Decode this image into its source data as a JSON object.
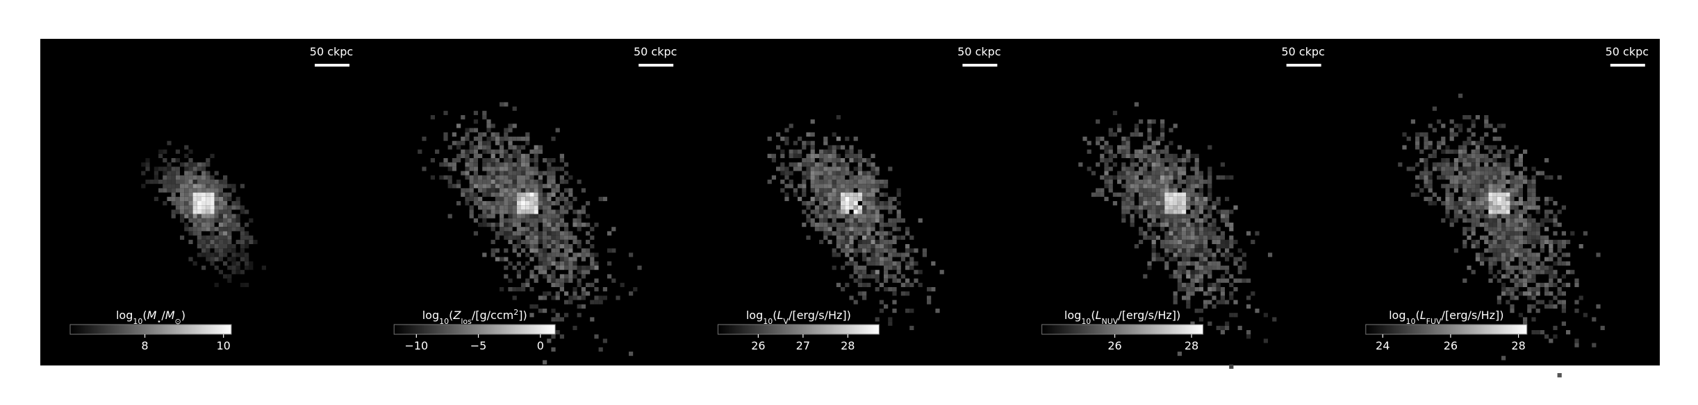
{
  "chart_data": [
    {
      "type": "image",
      "scale_bar_label": "50 ckpc",
      "colorbar_label": [
        {
          "text": "log"
        },
        {
          "text": "10",
          "sub": true
        },
        {
          "text": "("
        },
        {
          "text": "M",
          "italic": true
        },
        {
          "text": "⋆",
          "sub": true
        },
        {
          "text": "/"
        },
        {
          "text": "M",
          "italic": true
        },
        {
          "text": "⊙",
          "sub": true
        },
        {
          "text": ")"
        }
      ],
      "clim": [
        6.1,
        10.2
      ],
      "cticks": [
        8,
        10
      ]
    },
    {
      "type": "image",
      "scale_bar_label": "50 ckpc",
      "colorbar_label": [
        {
          "text": "log"
        },
        {
          "text": "10",
          "sub": true
        },
        {
          "text": "("
        },
        {
          "text": "Z",
          "italic": true
        },
        {
          "text": "los",
          "sub": true
        },
        {
          "text": "/[g/ccm"
        },
        {
          "text": "2",
          "sup": true
        },
        {
          "text": "])"
        }
      ],
      "clim": [
        -11.8,
        1.2
      ],
      "cticks": [
        {
          "value": -10,
          "label": "−10"
        },
        {
          "value": -5,
          "label": "−5"
        },
        0
      ]
    },
    {
      "type": "image",
      "scale_bar_label": "50 ckpc",
      "colorbar_label": [
        {
          "text": "log"
        },
        {
          "text": "10",
          "sub": true
        },
        {
          "text": "("
        },
        {
          "text": "L",
          "italic": true
        },
        {
          "text": "V",
          "sub": true
        },
        {
          "text": "/[erg/s/Hz])"
        }
      ],
      "clim": [
        25.1,
        28.7
      ],
      "cticks": [
        26,
        27,
        28
      ]
    },
    {
      "type": "image",
      "scale_bar_label": "50 ckpc",
      "colorbar_label": [
        {
          "text": "log"
        },
        {
          "text": "10",
          "sub": true
        },
        {
          "text": "("
        },
        {
          "text": "L",
          "italic": true
        },
        {
          "text": "NUV",
          "sub": true
        },
        {
          "text": "/[erg/s/Hz])"
        }
      ],
      "clim": [
        24.1,
        28.3
      ],
      "cticks": [
        26,
        28
      ]
    },
    {
      "type": "image",
      "scale_bar_label": "50 ckpc",
      "colorbar_label": [
        {
          "text": "log"
        },
        {
          "text": "10",
          "sub": true
        },
        {
          "text": "("
        },
        {
          "text": "L",
          "italic": true
        },
        {
          "text": "FUV",
          "sub": true
        },
        {
          "text": "/[erg/s/Hz])"
        }
      ],
      "clim": [
        23.5,
        28.25
      ],
      "cticks": [
        24,
        26,
        28
      ]
    }
  ]
}
